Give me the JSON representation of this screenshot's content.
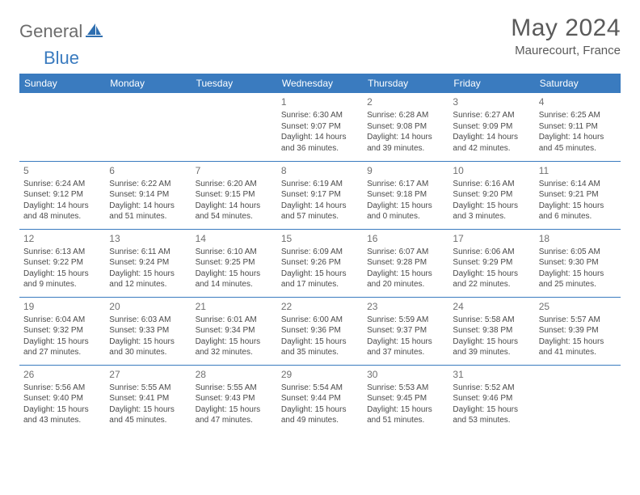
{
  "brand": {
    "general": "General",
    "blue": "Blue"
  },
  "title": "May 2024",
  "location": "Maurecourt, France",
  "header_bg": "#3a7bbf",
  "day_names": [
    "Sunday",
    "Monday",
    "Tuesday",
    "Wednesday",
    "Thursday",
    "Friday",
    "Saturday"
  ],
  "labels": {
    "sunrise": "Sunrise:",
    "sunset": "Sunset:",
    "daylight": "Daylight:"
  },
  "weeks": [
    [
      null,
      null,
      null,
      {
        "d": "1",
        "sr": "6:30 AM",
        "ss": "9:07 PM",
        "dl": "14 hours and 36 minutes."
      },
      {
        "d": "2",
        "sr": "6:28 AM",
        "ss": "9:08 PM",
        "dl": "14 hours and 39 minutes."
      },
      {
        "d": "3",
        "sr": "6:27 AM",
        "ss": "9:09 PM",
        "dl": "14 hours and 42 minutes."
      },
      {
        "d": "4",
        "sr": "6:25 AM",
        "ss": "9:11 PM",
        "dl": "14 hours and 45 minutes."
      }
    ],
    [
      {
        "d": "5",
        "sr": "6:24 AM",
        "ss": "9:12 PM",
        "dl": "14 hours and 48 minutes."
      },
      {
        "d": "6",
        "sr": "6:22 AM",
        "ss": "9:14 PM",
        "dl": "14 hours and 51 minutes."
      },
      {
        "d": "7",
        "sr": "6:20 AM",
        "ss": "9:15 PM",
        "dl": "14 hours and 54 minutes."
      },
      {
        "d": "8",
        "sr": "6:19 AM",
        "ss": "9:17 PM",
        "dl": "14 hours and 57 minutes."
      },
      {
        "d": "9",
        "sr": "6:17 AM",
        "ss": "9:18 PM",
        "dl": "15 hours and 0 minutes."
      },
      {
        "d": "10",
        "sr": "6:16 AM",
        "ss": "9:20 PM",
        "dl": "15 hours and 3 minutes."
      },
      {
        "d": "11",
        "sr": "6:14 AM",
        "ss": "9:21 PM",
        "dl": "15 hours and 6 minutes."
      }
    ],
    [
      {
        "d": "12",
        "sr": "6:13 AM",
        "ss": "9:22 PM",
        "dl": "15 hours and 9 minutes."
      },
      {
        "d": "13",
        "sr": "6:11 AM",
        "ss": "9:24 PM",
        "dl": "15 hours and 12 minutes."
      },
      {
        "d": "14",
        "sr": "6:10 AM",
        "ss": "9:25 PM",
        "dl": "15 hours and 14 minutes."
      },
      {
        "d": "15",
        "sr": "6:09 AM",
        "ss": "9:26 PM",
        "dl": "15 hours and 17 minutes."
      },
      {
        "d": "16",
        "sr": "6:07 AM",
        "ss": "9:28 PM",
        "dl": "15 hours and 20 minutes."
      },
      {
        "d": "17",
        "sr": "6:06 AM",
        "ss": "9:29 PM",
        "dl": "15 hours and 22 minutes."
      },
      {
        "d": "18",
        "sr": "6:05 AM",
        "ss": "9:30 PM",
        "dl": "15 hours and 25 minutes."
      }
    ],
    [
      {
        "d": "19",
        "sr": "6:04 AM",
        "ss": "9:32 PM",
        "dl": "15 hours and 27 minutes."
      },
      {
        "d": "20",
        "sr": "6:03 AM",
        "ss": "9:33 PM",
        "dl": "15 hours and 30 minutes."
      },
      {
        "d": "21",
        "sr": "6:01 AM",
        "ss": "9:34 PM",
        "dl": "15 hours and 32 minutes."
      },
      {
        "d": "22",
        "sr": "6:00 AM",
        "ss": "9:36 PM",
        "dl": "15 hours and 35 minutes."
      },
      {
        "d": "23",
        "sr": "5:59 AM",
        "ss": "9:37 PM",
        "dl": "15 hours and 37 minutes."
      },
      {
        "d": "24",
        "sr": "5:58 AM",
        "ss": "9:38 PM",
        "dl": "15 hours and 39 minutes."
      },
      {
        "d": "25",
        "sr": "5:57 AM",
        "ss": "9:39 PM",
        "dl": "15 hours and 41 minutes."
      }
    ],
    [
      {
        "d": "26",
        "sr": "5:56 AM",
        "ss": "9:40 PM",
        "dl": "15 hours and 43 minutes."
      },
      {
        "d": "27",
        "sr": "5:55 AM",
        "ss": "9:41 PM",
        "dl": "15 hours and 45 minutes."
      },
      {
        "d": "28",
        "sr": "5:55 AM",
        "ss": "9:43 PM",
        "dl": "15 hours and 47 minutes."
      },
      {
        "d": "29",
        "sr": "5:54 AM",
        "ss": "9:44 PM",
        "dl": "15 hours and 49 minutes."
      },
      {
        "d": "30",
        "sr": "5:53 AM",
        "ss": "9:45 PM",
        "dl": "15 hours and 51 minutes."
      },
      {
        "d": "31",
        "sr": "5:52 AM",
        "ss": "9:46 PM",
        "dl": "15 hours and 53 minutes."
      },
      null
    ]
  ]
}
